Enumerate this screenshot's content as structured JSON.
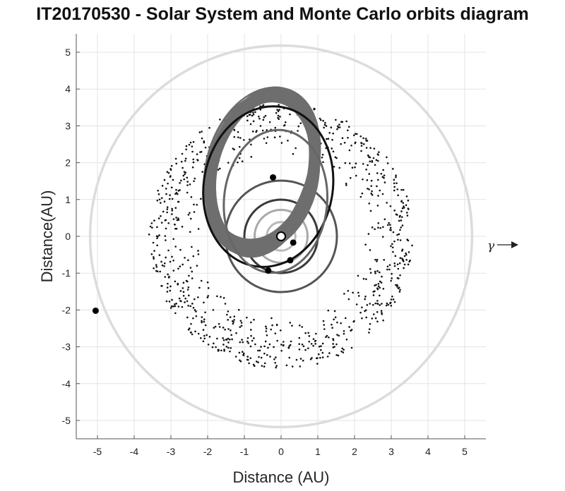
{
  "chart_data": {
    "type": "scatter",
    "title": "IT20170530 - Solar System and Monte Carlo orbits diagram",
    "xlabel": "Distance (AU)",
    "ylabel": "Distance(AU)",
    "xlim": [
      -5.5,
      5.5
    ],
    "ylim": [
      -5.5,
      5.5
    ],
    "xticks": [
      -5,
      -4,
      -3,
      -2,
      -1,
      0,
      1,
      2,
      3,
      4,
      5
    ],
    "yticks": [
      -5,
      -4,
      -3,
      -2,
      -1,
      0,
      1,
      2,
      3,
      4,
      5
    ],
    "grid": true,
    "aspect": "equal",
    "reference_direction_label": "γ",
    "sun": {
      "x": 0,
      "y": 0
    },
    "planet_orbits": [
      {
        "radius": 0.39,
        "color": "#b8b8b8"
      },
      {
        "radius": 0.72,
        "color": "#a8a8a8"
      },
      {
        "radius": 1.0,
        "color": "#3a3a3a"
      },
      {
        "radius": 1.52,
        "color": "#555555"
      },
      {
        "radius": 5.2,
        "color": "#dcdcdc"
      }
    ],
    "planets": [
      {
        "x": 0.33,
        "y": -0.17
      },
      {
        "x": 0.25,
        "y": -0.65
      },
      {
        "x": -0.35,
        "y": -0.93
      },
      {
        "x": -0.22,
        "y": 1.6
      },
      {
        "x": -5.05,
        "y": -2.02
      }
    ],
    "asteroid_belt": {
      "inner_radius": 2.2,
      "outer_radius": 3.6,
      "count": 900,
      "color": "#111111"
    },
    "monte_carlo_orbits": {
      "count": 60,
      "color": "#6e6e6e",
      "semi_major_axis_range": [
        2.0,
        2.25
      ],
      "semi_minor_axis_range": [
        1.25,
        1.5
      ],
      "center_range": {
        "x": [
          -0.55,
          -0.45
        ],
        "y": [
          1.6,
          1.9
        ]
      },
      "rotation_deg": 75
    },
    "highlighted_orbits": [
      {
        "cx": -0.35,
        "cy": 1.35,
        "a": 2.2,
        "b": 1.75,
        "rotation_deg": 80,
        "color": "#111111"
      },
      {
        "cx": -0.15,
        "cy": 0.95,
        "a": 1.95,
        "b": 1.4,
        "rotation_deg": 85,
        "color": "#666666"
      }
    ]
  }
}
